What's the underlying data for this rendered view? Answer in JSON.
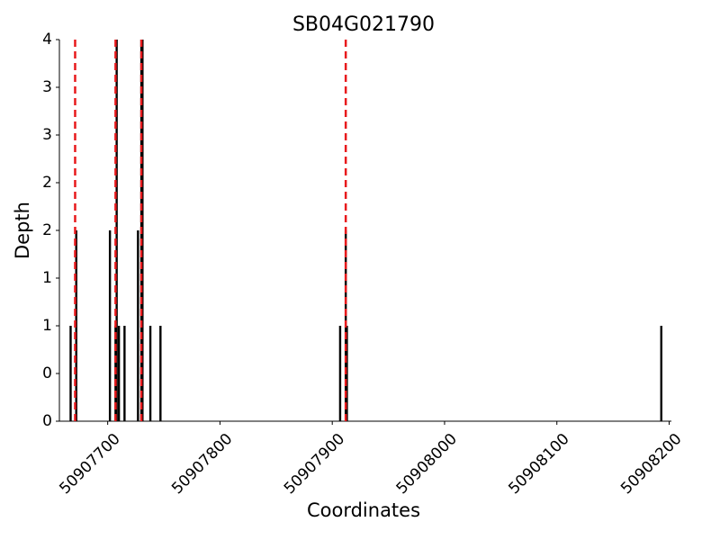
{
  "chart_data": {
    "type": "bar",
    "title": "SB04G021790",
    "x_label": "Coordinates",
    "y_label": "Depth",
    "x": [
      50907667,
      50907672,
      50907702,
      50907707,
      50907708,
      50907710,
      50907715,
      50907727,
      50907730,
      50907731,
      50907738,
      50907747,
      50907907,
      50907912,
      50907913,
      50908193
    ],
    "values": [
      1,
      2,
      2,
      1,
      4,
      1,
      1,
      2,
      4,
      4,
      1,
      1,
      1,
      2,
      1,
      1
    ],
    "color": "#000000",
    "markers": {
      "x": [
        50907671,
        50907707,
        50907730,
        50907912
      ],
      "color": "#e8191c",
      "dashed": true
    },
    "xlim": [
      50907657,
      50908202
    ],
    "ylim": [
      0,
      4
    ],
    "xticks": [
      50907700,
      50907800,
      50907900,
      50908000,
      50908100,
      50908200
    ],
    "yticks": [
      0,
      {
        "value": 0.5,
        "label": "0"
      },
      1,
      {
        "value": 1.5,
        "label": "1"
      },
      2,
      {
        "value": 2.5,
        "label": "2"
      },
      3,
      {
        "value": 3.5,
        "label": "3"
      },
      4
    ]
  }
}
